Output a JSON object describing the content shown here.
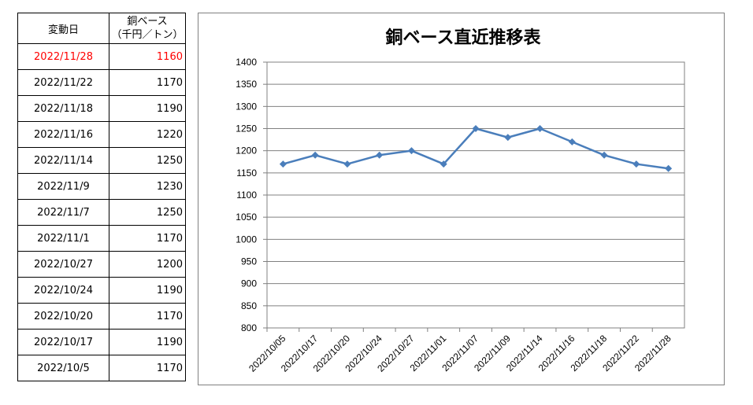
{
  "table": {
    "header_date": "変動日",
    "header_price_line1": "銅ベース",
    "header_price_line2": "（千円／トン）",
    "rows": [
      {
        "date": "2022/11/28",
        "price": "1160"
      },
      {
        "date": "2022/11/22",
        "price": "1170"
      },
      {
        "date": "2022/11/18",
        "price": "1190"
      },
      {
        "date": "2022/11/16",
        "price": "1220"
      },
      {
        "date": "2022/11/14",
        "price": "1250"
      },
      {
        "date": "2022/11/9",
        "price": "1230"
      },
      {
        "date": "2022/11/7",
        "price": "1250"
      },
      {
        "date": "2022/11/1",
        "price": "1170"
      },
      {
        "date": "2022/10/27",
        "price": "1200"
      },
      {
        "date": "2022/10/24",
        "price": "1190"
      },
      {
        "date": "2022/10/20",
        "price": "1170"
      },
      {
        "date": "2022/10/17",
        "price": "1190"
      },
      {
        "date": "2022/10/5",
        "price": "1170"
      }
    ],
    "highlight_color": "#ff0000"
  },
  "chart_data": {
    "type": "line",
    "title": "銅ベース直近推移表",
    "xlabel": "",
    "ylabel": "",
    "x": [
      "2022/10/05",
      "2022/10/17",
      "2022/10/20",
      "2022/10/24",
      "2022/10/27",
      "2022/11/01",
      "2022/11/07",
      "2022/11/09",
      "2022/11/14",
      "2022/11/16",
      "2022/11/18",
      "2022/11/22",
      "2022/11/28"
    ],
    "series": [
      {
        "values": [
          1170,
          1190,
          1170,
          1190,
          1200,
          1170,
          1250,
          1230,
          1250,
          1220,
          1190,
          1170,
          1160
        ],
        "color": "#4a7ebb"
      }
    ],
    "ylim": [
      800,
      1400
    ],
    "ytick_step": 50,
    "grid": true,
    "legend": "none",
    "marker": "diamond"
  }
}
